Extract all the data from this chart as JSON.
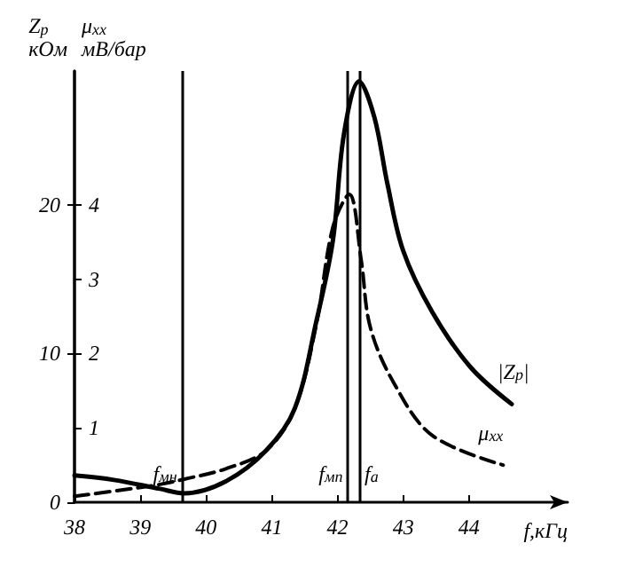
{
  "chart_data": {
    "type": "line",
    "xlabel": "f,кГц",
    "ylabel": "Z$_{р}$\nкОм",
    "y2label": "μ$_{хх}$\nмВ/бар",
    "xlim": [
      38,
      45.5
    ],
    "xticks": [
      38,
      39,
      40,
      41,
      42,
      43,
      44
    ],
    "ylim": [
      0,
      29
    ],
    "yticks": [
      0,
      10,
      20
    ],
    "y2lim": [
      0,
      5.8
    ],
    "y2ticks": [
      1,
      2,
      3,
      4
    ],
    "grid": false,
    "marker": "none",
    "series": [
      {
        "name": "|Z$_{р}$|",
        "color": "#000000",
        "line_style": "solid",
        "x": [
          38,
          38.6,
          39.3,
          39.67,
          40.3,
          40.92,
          41.35,
          41.68,
          41.93,
          42.1,
          42.33,
          42.56,
          42.76,
          43.0,
          43.44,
          44.02,
          44.65
        ],
        "values": [
          1.8,
          1.5,
          0.9,
          0.6,
          1.4,
          3.5,
          6.3,
          12.2,
          17.6,
          24.8,
          28.3,
          25.9,
          21.4,
          16.9,
          12.8,
          9.1,
          6.6
        ]
      },
      {
        "name": "μ$_{хх}$",
        "color": "#000000",
        "line_style": "dashed",
        "axis": "y2",
        "x": [
          38,
          38.6,
          39.3,
          39.67,
          40.3,
          40.92,
          41.35,
          41.68,
          41.93,
          42.18,
          42.36,
          42.5,
          42.86,
          43.44,
          44.52
        ],
        "values": [
          0.08,
          0.15,
          0.24,
          0.31,
          0.45,
          0.7,
          1.26,
          2.4,
          3.7,
          4.14,
          3.26,
          2.35,
          1.6,
          0.9,
          0.5
        ]
      }
    ],
    "ref_lines": [
      {
        "axis": "x",
        "value": 39.64,
        "label": "f$_{мн}$"
      },
      {
        "axis": "x",
        "value": 42.16,
        "label": "f$_{мп}$"
      },
      {
        "axis": "x",
        "value": 42.33,
        "label": "f$_{a}$"
      }
    ]
  }
}
